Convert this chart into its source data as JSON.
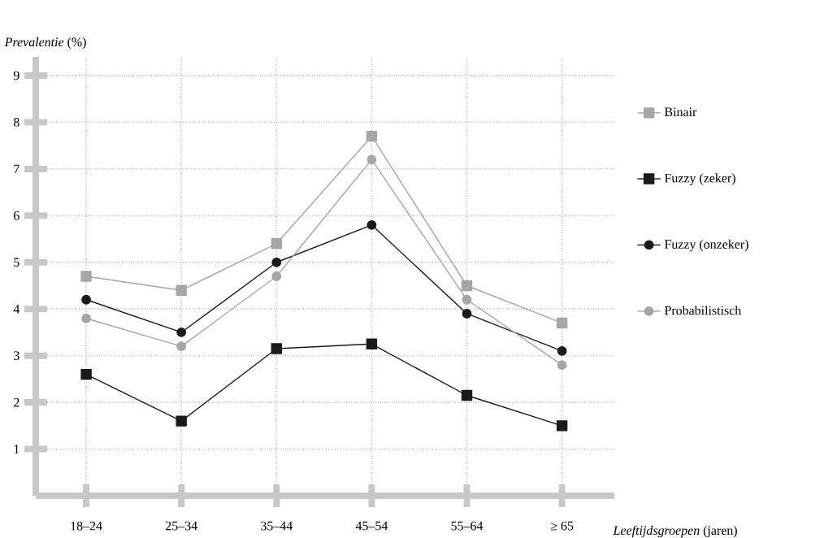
{
  "chart_data": {
    "type": "line",
    "ylabel": "*Prevalentie* (%)",
    "xlabel": "*Leeftijdsgroepen* (jaren)",
    "categories": [
      "18–24",
      "25–34",
      "35–44",
      "45–54",
      "55–64",
      "≥ 65"
    ],
    "series": [
      {
        "name": "Binair",
        "color": "#a6a6a6",
        "marker": "square",
        "values": [
          4.7,
          4.4,
          5.4,
          7.7,
          4.5,
          3.7
        ]
      },
      {
        "name": "Fuzzy (zeker)",
        "color": "#1a1a1a",
        "marker": "square",
        "values": [
          2.6,
          1.6,
          3.15,
          3.25,
          2.15,
          1.5
        ]
      },
      {
        "name": "Fuzzy (onzeker)",
        "color": "#1a1a1a",
        "marker": "circle",
        "values": [
          4.2,
          3.5,
          5.0,
          5.8,
          3.9,
          3.1
        ]
      },
      {
        "name": "Probabilistisch",
        "color": "#a6a6a6",
        "marker": "circle",
        "values": [
          3.8,
          3.2,
          4.7,
          7.2,
          4.2,
          2.8
        ]
      }
    ],
    "ylim": [
      0,
      9.4
    ],
    "yticks": [
      1,
      2,
      3,
      4,
      5,
      6,
      7,
      8,
      9
    ],
    "grid": true,
    "legend": "right",
    "line_style": "solid"
  }
}
